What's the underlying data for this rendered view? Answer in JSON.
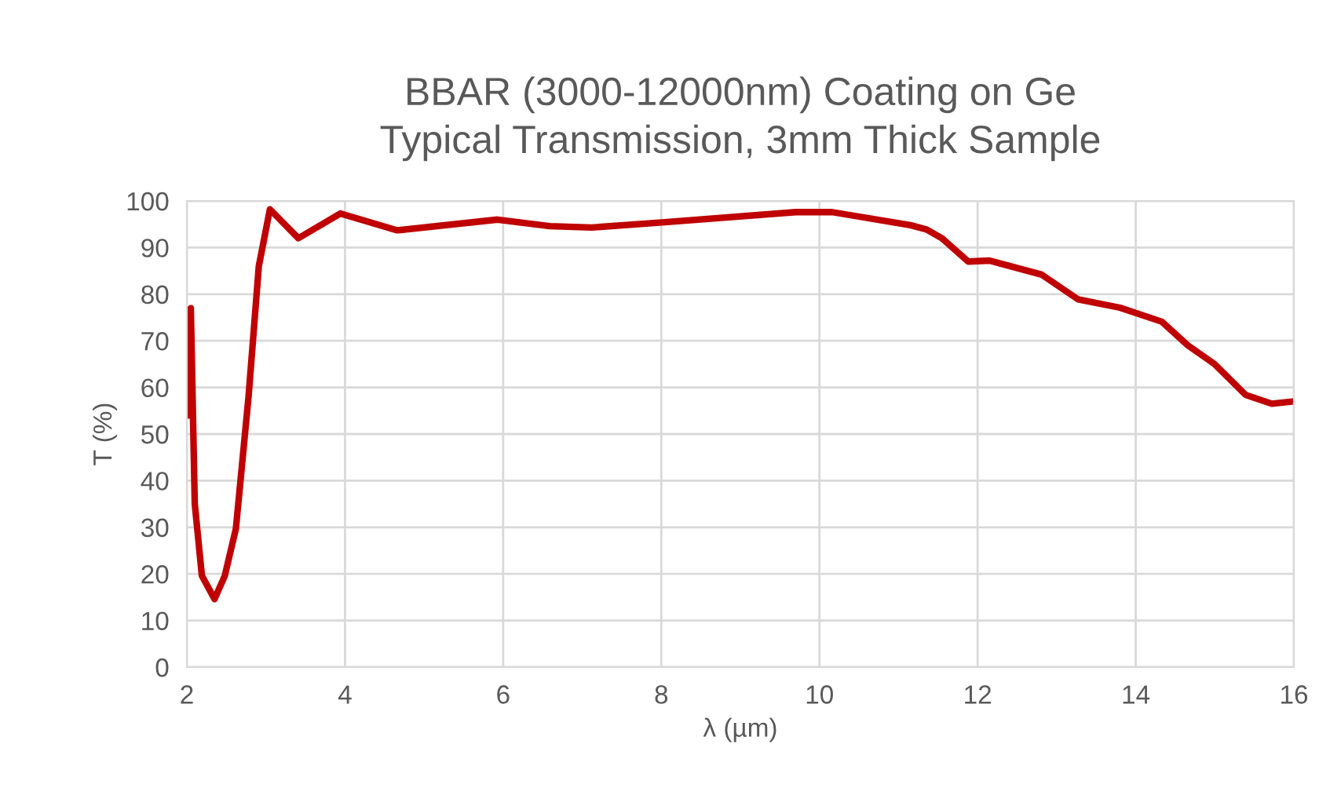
{
  "chart_data": {
    "type": "line",
    "title": "BBAR (3000-12000nm) Coating on Ge\nTypical Transmission, 3mm Thick Sample",
    "xlabel": "λ (µm)",
    "ylabel": "T (%)",
    "series": [
      {
        "color": "#c00000",
        "x": [
          2.0,
          2.05,
          2.1,
          2.19,
          2.35,
          2.48,
          2.62,
          2.78,
          2.91,
          3.05,
          3.41,
          3.94,
          4.66,
          5.93,
          6.59,
          7.12,
          8.01,
          9.7,
          10.16,
          11.15,
          11.35,
          11.55,
          11.88,
          12.15,
          12.81,
          13.27,
          13.8,
          14.33,
          14.66,
          14.99,
          15.39,
          15.72,
          16.0
        ],
        "values": [
          54,
          77,
          35,
          19.6,
          14.6,
          19.6,
          29.7,
          58,
          86,
          98.2,
          92,
          97.3,
          93.7,
          96,
          94.6,
          94.3,
          95.4,
          97.6,
          97.6,
          94.8,
          93.9,
          92,
          87,
          87.2,
          84.2,
          78.9,
          77.1,
          74.1,
          69,
          65.1,
          58.4,
          56.5,
          57
        ]
      }
    ],
    "xlim": [
      2,
      16
    ],
    "xticks": [
      2,
      4,
      6,
      8,
      10,
      12,
      14,
      16
    ],
    "ylim": [
      0,
      100
    ],
    "yticks": [
      0,
      10,
      20,
      30,
      40,
      50,
      60,
      70,
      80,
      90,
      100
    ],
    "grid": true,
    "line_style": "solid",
    "marker": "none"
  }
}
